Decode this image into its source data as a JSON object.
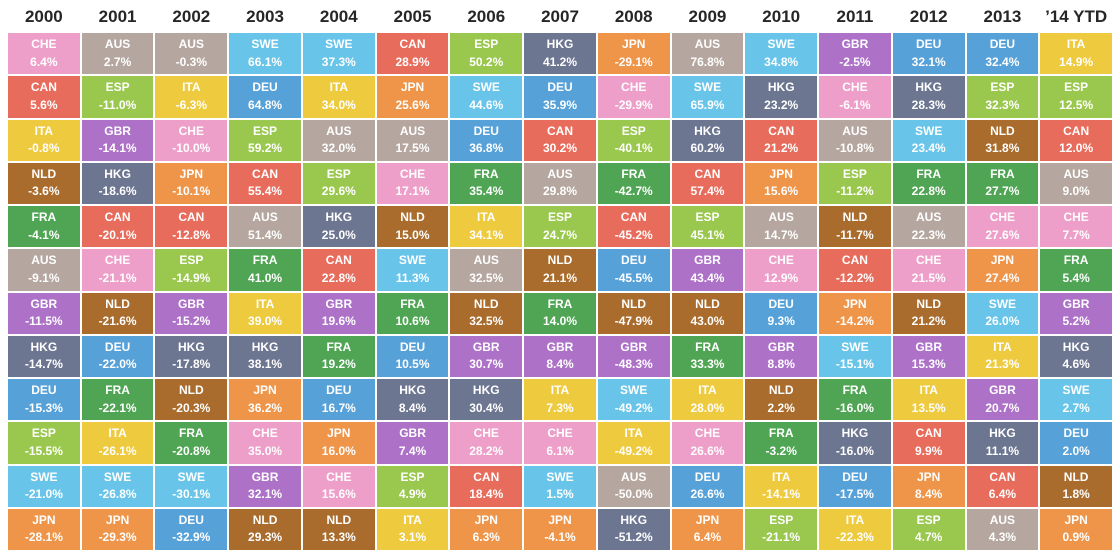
{
  "chart_data": {
    "type": "heatmap",
    "layout": "ranked-columns-quilt",
    "columns": [
      "2000",
      "2001",
      "2002",
      "2003",
      "2004",
      "2005",
      "2006",
      "2007",
      "2008",
      "2009",
      "2010",
      "2011",
      "2012",
      "2013",
      "’14 YTD"
    ],
    "rows_per_column": 12,
    "value_suffix": "%",
    "cell_text_color": "#ffffff",
    "header_text_color": "#262626",
    "background": "#ffffff",
    "country_colors": {
      "CHE": "#ee9fc9",
      "AUS": "#b5a79f",
      "SWE": "#68c5e9",
      "CAN": "#e86c5c",
      "ESP": "#9ac84e",
      "ITA": "#eeca3f",
      "DEU": "#57a1d9",
      "GBR": "#ad72c8",
      "NLD": "#a96c2d",
      "HKG": "#6d7691",
      "JPN": "#ee954a",
      "FRA": "#4fa553"
    },
    "series": [
      {
        "year": "2000",
        "ranked": [
          {
            "code": "CHE",
            "value": 6.4
          },
          {
            "code": "CAN",
            "value": 5.6
          },
          {
            "code": "ITA",
            "value": -0.8
          },
          {
            "code": "NLD",
            "value": -3.6
          },
          {
            "code": "FRA",
            "value": -4.1
          },
          {
            "code": "AUS",
            "value": -9.1
          },
          {
            "code": "GBR",
            "value": -11.5
          },
          {
            "code": "HKG",
            "value": -14.7
          },
          {
            "code": "DEU",
            "value": -15.3
          },
          {
            "code": "ESP",
            "value": -15.5
          },
          {
            "code": "SWE",
            "value": -21.0
          },
          {
            "code": "JPN",
            "value": -28.1
          }
        ]
      },
      {
        "year": "2001",
        "ranked": [
          {
            "code": "AUS",
            "value": 2.7
          },
          {
            "code": "ESP",
            "value": -11.0
          },
          {
            "code": "GBR",
            "value": -14.1
          },
          {
            "code": "HKG",
            "value": -18.6
          },
          {
            "code": "CAN",
            "value": -20.1
          },
          {
            "code": "CHE",
            "value": -21.1
          },
          {
            "code": "NLD",
            "value": -21.6
          },
          {
            "code": "DEU",
            "value": -22.0
          },
          {
            "code": "FRA",
            "value": -22.1
          },
          {
            "code": "ITA",
            "value": -26.1
          },
          {
            "code": "SWE",
            "value": -26.8
          },
          {
            "code": "JPN",
            "value": -29.3
          }
        ]
      },
      {
        "year": "2002",
        "ranked": [
          {
            "code": "AUS",
            "value": -0.3
          },
          {
            "code": "ITA",
            "value": -6.3
          },
          {
            "code": "CHE",
            "value": -10.0
          },
          {
            "code": "JPN",
            "value": -10.1
          },
          {
            "code": "CAN",
            "value": -12.8
          },
          {
            "code": "ESP",
            "value": -14.9
          },
          {
            "code": "GBR",
            "value": -15.2
          },
          {
            "code": "HKG",
            "value": -17.8
          },
          {
            "code": "NLD",
            "value": -20.3
          },
          {
            "code": "FRA",
            "value": -20.8
          },
          {
            "code": "SWE",
            "value": -30.1
          },
          {
            "code": "DEU",
            "value": -32.9
          }
        ]
      },
      {
        "year": "2003",
        "ranked": [
          {
            "code": "SWE",
            "value": 66.1
          },
          {
            "code": "DEU",
            "value": 64.8
          },
          {
            "code": "ESP",
            "value": 59.2
          },
          {
            "code": "CAN",
            "value": 55.4
          },
          {
            "code": "AUS",
            "value": 51.4
          },
          {
            "code": "FRA",
            "value": 41.0
          },
          {
            "code": "ITA",
            "value": 39.0
          },
          {
            "code": "HKG",
            "value": 38.1
          },
          {
            "code": "JPN",
            "value": 36.2
          },
          {
            "code": "CHE",
            "value": 35.0
          },
          {
            "code": "GBR",
            "value": 32.1
          },
          {
            "code": "NLD",
            "value": 29.3
          }
        ]
      },
      {
        "year": "2004",
        "ranked": [
          {
            "code": "SWE",
            "value": 37.3
          },
          {
            "code": "ITA",
            "value": 34.0
          },
          {
            "code": "AUS",
            "value": 32.0
          },
          {
            "code": "ESP",
            "value": 29.6
          },
          {
            "code": "HKG",
            "value": 25.0
          },
          {
            "code": "CAN",
            "value": 22.8
          },
          {
            "code": "GBR",
            "value": 19.6
          },
          {
            "code": "FRA",
            "value": 19.2
          },
          {
            "code": "DEU",
            "value": 16.7
          },
          {
            "code": "JPN",
            "value": 16.0
          },
          {
            "code": "CHE",
            "value": 15.6
          },
          {
            "code": "NLD",
            "value": 13.3
          }
        ]
      },
      {
        "year": "2005",
        "ranked": [
          {
            "code": "CAN",
            "value": 28.9
          },
          {
            "code": "JPN",
            "value": 25.6
          },
          {
            "code": "AUS",
            "value": 17.5
          },
          {
            "code": "CHE",
            "value": 17.1
          },
          {
            "code": "NLD",
            "value": 15.0
          },
          {
            "code": "SWE",
            "value": 11.3
          },
          {
            "code": "FRA",
            "value": 10.6
          },
          {
            "code": "DEU",
            "value": 10.5
          },
          {
            "code": "HKG",
            "value": 8.4
          },
          {
            "code": "GBR",
            "value": 7.4
          },
          {
            "code": "ESP",
            "value": 4.9
          },
          {
            "code": "ITA",
            "value": 3.1
          }
        ]
      },
      {
        "year": "2006",
        "ranked": [
          {
            "code": "ESP",
            "value": 50.2
          },
          {
            "code": "SWE",
            "value": 44.6
          },
          {
            "code": "DEU",
            "value": 36.8
          },
          {
            "code": "FRA",
            "value": 35.4
          },
          {
            "code": "ITA",
            "value": 34.1
          },
          {
            "code": "AUS",
            "value": 32.5
          },
          {
            "code": "NLD",
            "value": 32.5
          },
          {
            "code": "GBR",
            "value": 30.7
          },
          {
            "code": "HKG",
            "value": 30.4
          },
          {
            "code": "CHE",
            "value": 28.2
          },
          {
            "code": "CAN",
            "value": 18.4
          },
          {
            "code": "JPN",
            "value": 6.3
          }
        ]
      },
      {
        "year": "2007",
        "ranked": [
          {
            "code": "HKG",
            "value": 41.2
          },
          {
            "code": "DEU",
            "value": 35.9
          },
          {
            "code": "CAN",
            "value": 30.2
          },
          {
            "code": "AUS",
            "value": 29.8
          },
          {
            "code": "ESP",
            "value": 24.7
          },
          {
            "code": "NLD",
            "value": 21.1
          },
          {
            "code": "FRA",
            "value": 14.0
          },
          {
            "code": "GBR",
            "value": 8.4
          },
          {
            "code": "ITA",
            "value": 7.3
          },
          {
            "code": "CHE",
            "value": 6.1
          },
          {
            "code": "SWE",
            "value": 1.5
          },
          {
            "code": "JPN",
            "value": -4.1
          }
        ]
      },
      {
        "year": "2008",
        "ranked": [
          {
            "code": "JPN",
            "value": -29.1
          },
          {
            "code": "CHE",
            "value": -29.9
          },
          {
            "code": "ESP",
            "value": -40.1
          },
          {
            "code": "FRA",
            "value": -42.7
          },
          {
            "code": "CAN",
            "value": -45.2
          },
          {
            "code": "DEU",
            "value": -45.5
          },
          {
            "code": "NLD",
            "value": -47.9
          },
          {
            "code": "GBR",
            "value": -48.3
          },
          {
            "code": "SWE",
            "value": -49.2
          },
          {
            "code": "ITA",
            "value": -49.2
          },
          {
            "code": "AUS",
            "value": -50.0
          },
          {
            "code": "HKG",
            "value": -51.2
          }
        ]
      },
      {
        "year": "2009",
        "ranked": [
          {
            "code": "AUS",
            "value": 76.8
          },
          {
            "code": "SWE",
            "value": 65.9
          },
          {
            "code": "HKG",
            "value": 60.2
          },
          {
            "code": "CAN",
            "value": 57.4
          },
          {
            "code": "ESP",
            "value": 45.1
          },
          {
            "code": "GBR",
            "value": 43.4
          },
          {
            "code": "NLD",
            "value": 43.0
          },
          {
            "code": "FRA",
            "value": 33.3
          },
          {
            "code": "ITA",
            "value": 28.0
          },
          {
            "code": "CHE",
            "value": 26.6
          },
          {
            "code": "DEU",
            "value": 26.6
          },
          {
            "code": "JPN",
            "value": 6.4
          }
        ]
      },
      {
        "year": "2010",
        "ranked": [
          {
            "code": "SWE",
            "value": 34.8
          },
          {
            "code": "HKG",
            "value": 23.2
          },
          {
            "code": "CAN",
            "value": 21.2
          },
          {
            "code": "JPN",
            "value": 15.6
          },
          {
            "code": "AUS",
            "value": 14.7
          },
          {
            "code": "CHE",
            "value": 12.9
          },
          {
            "code": "DEU",
            "value": 9.3
          },
          {
            "code": "GBR",
            "value": 8.8
          },
          {
            "code": "NLD",
            "value": 2.2
          },
          {
            "code": "FRA",
            "value": -3.2
          },
          {
            "code": "ITA",
            "value": -14.1
          },
          {
            "code": "ESP",
            "value": -21.1
          }
        ]
      },
      {
        "year": "2011",
        "ranked": [
          {
            "code": "GBR",
            "value": -2.5
          },
          {
            "code": "CHE",
            "value": -6.1
          },
          {
            "code": "AUS",
            "value": -10.8
          },
          {
            "code": "ESP",
            "value": -11.2
          },
          {
            "code": "NLD",
            "value": -11.7
          },
          {
            "code": "CAN",
            "value": -12.2
          },
          {
            "code": "JPN",
            "value": -14.2
          },
          {
            "code": "SWE",
            "value": -15.1
          },
          {
            "code": "FRA",
            "value": -16.0
          },
          {
            "code": "HKG",
            "value": -16.0
          },
          {
            "code": "DEU",
            "value": -17.5
          },
          {
            "code": "ITA",
            "value": -22.3
          }
        ]
      },
      {
        "year": "2012",
        "ranked": [
          {
            "code": "DEU",
            "value": 32.1
          },
          {
            "code": "HKG",
            "value": 28.3
          },
          {
            "code": "SWE",
            "value": 23.4
          },
          {
            "code": "FRA",
            "value": 22.8
          },
          {
            "code": "AUS",
            "value": 22.3
          },
          {
            "code": "CHE",
            "value": 21.5
          },
          {
            "code": "NLD",
            "value": 21.2
          },
          {
            "code": "GBR",
            "value": 15.3
          },
          {
            "code": "ITA",
            "value": 13.5
          },
          {
            "code": "CAN",
            "value": 9.9
          },
          {
            "code": "JPN",
            "value": 8.4
          },
          {
            "code": "ESP",
            "value": 4.7
          }
        ]
      },
      {
        "year": "2013",
        "ranked": [
          {
            "code": "DEU",
            "value": 32.4
          },
          {
            "code": "ESP",
            "value": 32.3
          },
          {
            "code": "NLD",
            "value": 31.8
          },
          {
            "code": "FRA",
            "value": 27.7
          },
          {
            "code": "CHE",
            "value": 27.6
          },
          {
            "code": "JPN",
            "value": 27.4
          },
          {
            "code": "SWE",
            "value": 26.0
          },
          {
            "code": "ITA",
            "value": 21.3
          },
          {
            "code": "GBR",
            "value": 20.7
          },
          {
            "code": "HKG",
            "value": 11.1
          },
          {
            "code": "CAN",
            "value": 6.4
          },
          {
            "code": "AUS",
            "value": 4.3
          }
        ]
      },
      {
        "year": "’14 YTD",
        "ranked": [
          {
            "code": "ITA",
            "value": 14.9
          },
          {
            "code": "ESP",
            "value": 12.5
          },
          {
            "code": "CAN",
            "value": 12.0
          },
          {
            "code": "AUS",
            "value": 9.0
          },
          {
            "code": "CHE",
            "value": 7.7
          },
          {
            "code": "FRA",
            "value": 5.4
          },
          {
            "code": "GBR",
            "value": 5.2
          },
          {
            "code": "HKG",
            "value": 4.6
          },
          {
            "code": "SWE",
            "value": 2.7
          },
          {
            "code": "DEU",
            "value": 2.0
          },
          {
            "code": "NLD",
            "value": 1.8
          },
          {
            "code": "JPN",
            "value": 0.9
          }
        ]
      }
    ]
  }
}
